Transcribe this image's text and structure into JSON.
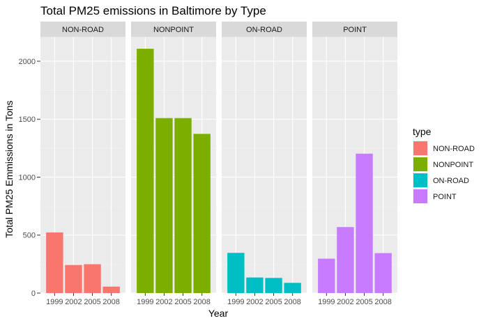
{
  "chart_data": {
    "type": "bar",
    "title": "Total PM25 emissions in Baltimore by Type",
    "xlabel": "Year",
    "ylabel": "Total PM25 Emmissions in Tons",
    "categories": [
      "1999",
      "2002",
      "2005",
      "2008"
    ],
    "ylim": [
      0,
      2210
    ],
    "yticks": [
      0,
      500,
      1000,
      1500,
      2000
    ],
    "grid": true,
    "legend_position": "right",
    "legend_title": "type",
    "facets": [
      {
        "name": "NON-ROAD",
        "color": "#F8766D",
        "values": [
          522.94,
          242.26,
          248.93,
          55.82
        ]
      },
      {
        "name": "NONPOINT",
        "color": "#7CAE00",
        "values": [
          2107.63,
          1509.5,
          1509.5,
          1373.21
        ]
      },
      {
        "name": "ON-ROAD",
        "color": "#00BFC4",
        "values": [
          346.82,
          134.31,
          130.43,
          88.28
        ]
      },
      {
        "name": "POINT",
        "color": "#C77CFF",
        "values": [
          296.8,
          569.26,
          1202.49,
          344.98
        ]
      }
    ]
  }
}
